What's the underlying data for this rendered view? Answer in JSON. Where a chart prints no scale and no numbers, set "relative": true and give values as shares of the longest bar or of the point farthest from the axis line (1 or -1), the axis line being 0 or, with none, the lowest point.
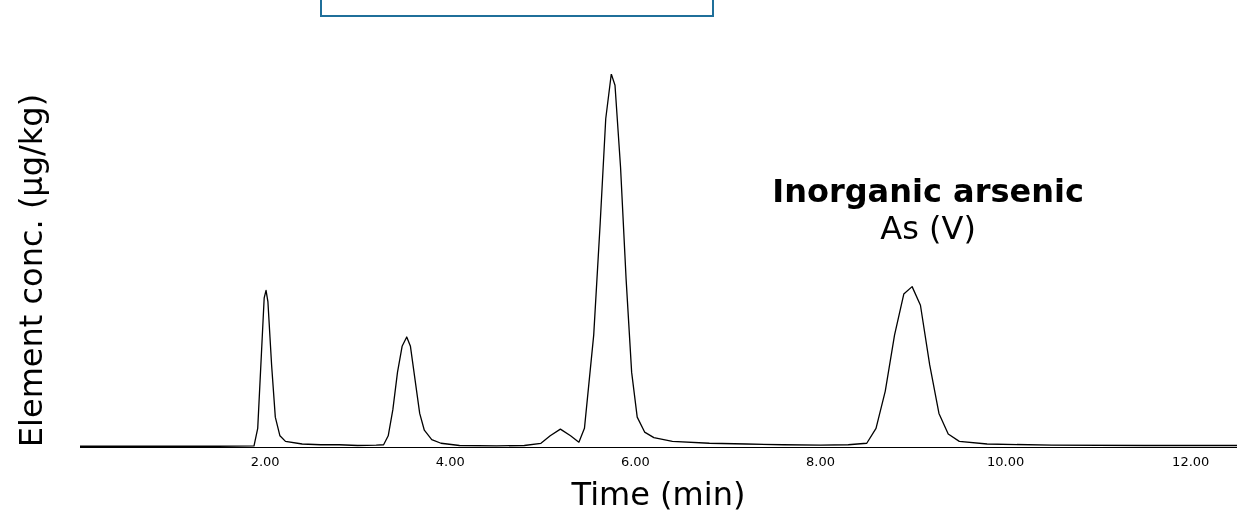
{
  "chart_data": {
    "type": "line",
    "xlabel": "Time (min)",
    "ylabel": "Element conc. (µg/kg)",
    "annotations": [
      "Inorganic arsenic",
      "As (V)"
    ],
    "relative": true,
    "legend": false,
    "grid": false,
    "marker": "none",
    "line_style": "solid",
    "xlim": [
      0,
      12.5
    ],
    "xticks": [
      {
        "value": 2,
        "label": "2.00"
      },
      {
        "value": 4,
        "label": "4.00"
      },
      {
        "value": 6,
        "label": "6.00"
      },
      {
        "value": 8,
        "label": "8.00"
      },
      {
        "value": 10,
        "label": "10.00"
      },
      {
        "value": 12,
        "label": "12.00"
      }
    ],
    "series": [
      {
        "color": "#000000",
        "x": [
          0,
          1.5,
          1.88,
          1.92,
          1.96,
          1.99,
          2.01,
          2.03,
          2.07,
          2.11,
          2.16,
          2.22,
          2.4,
          2.6,
          2.8,
          3.0,
          3.2,
          3.28,
          3.33,
          3.38,
          3.43,
          3.48,
          3.53,
          3.57,
          3.62,
          3.67,
          3.72,
          3.8,
          3.9,
          4.1,
          4.5,
          4.8,
          4.98,
          5.08,
          5.19,
          5.3,
          5.39,
          5.45,
          5.55,
          5.62,
          5.68,
          5.74,
          5.78,
          5.84,
          5.9,
          5.96,
          6.02,
          6.1,
          6.2,
          6.4,
          6.8,
          7.2,
          7.6,
          8.0,
          8.3,
          8.5,
          8.6,
          8.7,
          8.8,
          8.9,
          8.99,
          9.08,
          9.18,
          9.28,
          9.38,
          9.5,
          9.8,
          10.5,
          11.5,
          12.5
        ],
        "values": [
          0.002,
          0.002,
          0.003,
          0.05,
          0.25,
          0.4,
          0.42,
          0.39,
          0.22,
          0.08,
          0.03,
          0.015,
          0.008,
          0.006,
          0.006,
          0.004,
          0.005,
          0.006,
          0.03,
          0.1,
          0.2,
          0.27,
          0.295,
          0.27,
          0.18,
          0.09,
          0.045,
          0.02,
          0.01,
          0.004,
          0.003,
          0.004,
          0.01,
          0.03,
          0.048,
          0.03,
          0.013,
          0.05,
          0.3,
          0.6,
          0.88,
          1.0,
          0.97,
          0.75,
          0.45,
          0.2,
          0.08,
          0.04,
          0.025,
          0.015,
          0.01,
          0.008,
          0.006,
          0.005,
          0.006,
          0.01,
          0.05,
          0.15,
          0.3,
          0.41,
          0.43,
          0.38,
          0.22,
          0.09,
          0.035,
          0.015,
          0.008,
          0.005,
          0.004,
          0.004
        ]
      }
    ]
  }
}
